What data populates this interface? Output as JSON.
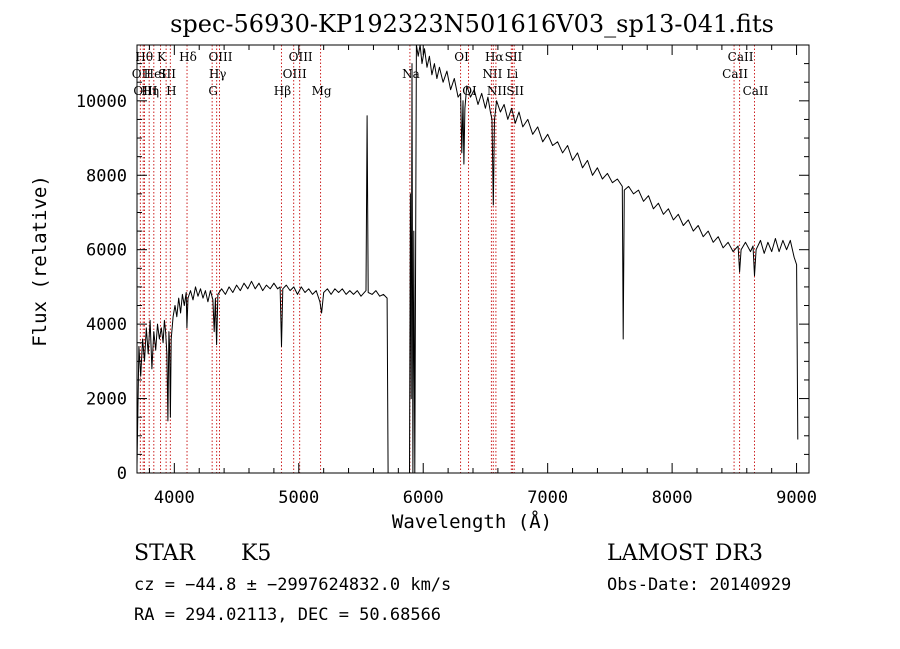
{
  "chart_data": {
    "type": "line",
    "title": "spec-56930-KP192323N501616V03_sp13-041.fits",
    "xlabel": "Wavelength (Å)",
    "ylabel": "Flux (relative)",
    "xlim": [
      3700,
      9100
    ],
    "ylim": [
      0,
      11500
    ],
    "xticks": [
      4000,
      5000,
      6000,
      7000,
      8000,
      9000
    ],
    "xtick_labels": [
      "4000",
      "5000",
      "6000",
      "7000",
      "8000",
      "9000"
    ],
    "yticks": [
      0,
      2000,
      4000,
      6000,
      8000,
      10000
    ],
    "ytick_labels": [
      "0",
      "2000",
      "4000",
      "6000",
      "8000",
      "10000"
    ],
    "grid": false,
    "series": [
      {
        "name": "flux",
        "points": [
          [
            3700,
            200
          ],
          [
            3715,
            3400
          ],
          [
            3730,
            2600
          ],
          [
            3745,
            3600
          ],
          [
            3760,
            3000
          ],
          [
            3775,
            3900
          ],
          [
            3790,
            3200
          ],
          [
            3805,
            4100
          ],
          [
            3820,
            2800
          ],
          [
            3835,
            3800
          ],
          [
            3850,
            3300
          ],
          [
            3865,
            4000
          ],
          [
            3880,
            3600
          ],
          [
            3895,
            3900
          ],
          [
            3910,
            3500
          ],
          [
            3920,
            4100
          ],
          [
            3930,
            3800
          ],
          [
            3940,
            3200
          ],
          [
            3948,
            1400
          ],
          [
            3956,
            3800
          ],
          [
            3962,
            3400
          ],
          [
            3968,
            1500
          ],
          [
            3975,
            3600
          ],
          [
            3990,
            4200
          ],
          [
            4005,
            4500
          ],
          [
            4020,
            4200
          ],
          [
            4035,
            4700
          ],
          [
            4050,
            4300
          ],
          [
            4065,
            4800
          ],
          [
            4080,
            4500
          ],
          [
            4095,
            4850
          ],
          [
            4101,
            3900
          ],
          [
            4110,
            4700
          ],
          [
            4130,
            4900
          ],
          [
            4150,
            4650
          ],
          [
            4170,
            5000
          ],
          [
            4190,
            4750
          ],
          [
            4210,
            4950
          ],
          [
            4230,
            4700
          ],
          [
            4250,
            4900
          ],
          [
            4270,
            4600
          ],
          [
            4290,
            4900
          ],
          [
            4310,
            4650
          ],
          [
            4320,
            3800
          ],
          [
            4330,
            4700
          ],
          [
            4340,
            3450
          ],
          [
            4350,
            4800
          ],
          [
            4380,
            4950
          ],
          [
            4410,
            4800
          ],
          [
            4440,
            5000
          ],
          [
            4470,
            4850
          ],
          [
            4500,
            5050
          ],
          [
            4530,
            4900
          ],
          [
            4560,
            5100
          ],
          [
            4590,
            4950
          ],
          [
            4620,
            5150
          ],
          [
            4650,
            4950
          ],
          [
            4680,
            5100
          ],
          [
            4710,
            4900
          ],
          [
            4740,
            5050
          ],
          [
            4770,
            4950
          ],
          [
            4800,
            5100
          ],
          [
            4830,
            4950
          ],
          [
            4850,
            5000
          ],
          [
            4861,
            3400
          ],
          [
            4872,
            4950
          ],
          [
            4900,
            5050
          ],
          [
            4930,
            4900
          ],
          [
            4960,
            5000
          ],
          [
            4990,
            4800
          ],
          [
            5020,
            5000
          ],
          [
            5050,
            4850
          ],
          [
            5080,
            4950
          ],
          [
            5110,
            4800
          ],
          [
            5140,
            4900
          ],
          [
            5170,
            4600
          ],
          [
            5183,
            4300
          ],
          [
            5200,
            4850
          ],
          [
            5230,
            4950
          ],
          [
            5260,
            4800
          ],
          [
            5290,
            4950
          ],
          [
            5320,
            4850
          ],
          [
            5350,
            4950
          ],
          [
            5380,
            4800
          ],
          [
            5410,
            4900
          ],
          [
            5440,
            4800
          ],
          [
            5470,
            4900
          ],
          [
            5500,
            4750
          ],
          [
            5540,
            4900
          ],
          [
            5549,
            9600
          ],
          [
            5558,
            4850
          ],
          [
            5590,
            4800
          ],
          [
            5620,
            4900
          ],
          [
            5650,
            4750
          ],
          [
            5680,
            4800
          ],
          [
            5710,
            4700
          ],
          [
            5718,
            0
          ],
          [
            5890,
            0
          ],
          [
            5897,
            7500
          ],
          [
            5903,
            2000
          ],
          [
            5910,
            11000
          ],
          [
            5917,
            0
          ],
          [
            5924,
            6500
          ],
          [
            5932,
            0
          ],
          [
            5945,
            11600
          ],
          [
            5960,
            11200
          ],
          [
            5975,
            11500
          ],
          [
            5990,
            11000
          ],
          [
            6010,
            11400
          ],
          [
            6030,
            10900
          ],
          [
            6050,
            11200
          ],
          [
            6070,
            10700
          ],
          [
            6090,
            11000
          ],
          [
            6110,
            10600
          ],
          [
            6130,
            10900
          ],
          [
            6160,
            10500
          ],
          [
            6190,
            10800
          ],
          [
            6220,
            10300
          ],
          [
            6250,
            10600
          ],
          [
            6280,
            10100
          ],
          [
            6300,
            10200
          ],
          [
            6310,
            8600
          ],
          [
            6320,
            10000
          ],
          [
            6327,
            8300
          ],
          [
            6335,
            9800
          ],
          [
            6350,
            10400
          ],
          [
            6380,
            10100
          ],
          [
            6410,
            10300
          ],
          [
            6440,
            9900
          ],
          [
            6470,
            10200
          ],
          [
            6500,
            9800
          ],
          [
            6520,
            10100
          ],
          [
            6540,
            9700
          ],
          [
            6553,
            9500
          ],
          [
            6563,
            7200
          ],
          [
            6573,
            9500
          ],
          [
            6590,
            10000
          ],
          [
            6620,
            9700
          ],
          [
            6650,
            9900
          ],
          [
            6680,
            9500
          ],
          [
            6710,
            9800
          ],
          [
            6740,
            9400
          ],
          [
            6770,
            9700
          ],
          [
            6800,
            9300
          ],
          [
            6840,
            9500
          ],
          [
            6880,
            9100
          ],
          [
            6920,
            9300
          ],
          [
            6960,
            8900
          ],
          [
            7000,
            9100
          ],
          [
            7040,
            8800
          ],
          [
            7080,
            8900
          ],
          [
            7120,
            8600
          ],
          [
            7160,
            8800
          ],
          [
            7200,
            8400
          ],
          [
            7240,
            8600
          ],
          [
            7280,
            8200
          ],
          [
            7320,
            8400
          ],
          [
            7360,
            8000
          ],
          [
            7400,
            8200
          ],
          [
            7440,
            7900
          ],
          [
            7480,
            8050
          ],
          [
            7520,
            7800
          ],
          [
            7560,
            7900
          ],
          [
            7600,
            7700
          ],
          [
            7607,
            3600
          ],
          [
            7616,
            7600
          ],
          [
            7650,
            7700
          ],
          [
            7690,
            7500
          ],
          [
            7730,
            7600
          ],
          [
            7770,
            7300
          ],
          [
            7810,
            7450
          ],
          [
            7850,
            7100
          ],
          [
            7890,
            7250
          ],
          [
            7930,
            6950
          ],
          [
            7970,
            7100
          ],
          [
            8010,
            6800
          ],
          [
            8050,
            6950
          ],
          [
            8090,
            6650
          ],
          [
            8130,
            6800
          ],
          [
            8170,
            6500
          ],
          [
            8210,
            6650
          ],
          [
            8250,
            6350
          ],
          [
            8290,
            6500
          ],
          [
            8330,
            6200
          ],
          [
            8370,
            6350
          ],
          [
            8410,
            6050
          ],
          [
            8450,
            6200
          ],
          [
            8490,
            5950
          ],
          [
            8530,
            6100
          ],
          [
            8542,
            5400
          ],
          [
            8554,
            6000
          ],
          [
            8590,
            6200
          ],
          [
            8630,
            5950
          ],
          [
            8650,
            6100
          ],
          [
            8662,
            5300
          ],
          [
            8675,
            6000
          ],
          [
            8710,
            6250
          ],
          [
            8740,
            5900
          ],
          [
            8770,
            6200
          ],
          [
            8800,
            5950
          ],
          [
            8830,
            6300
          ],
          [
            8860,
            5950
          ],
          [
            8890,
            6250
          ],
          [
            8920,
            6000
          ],
          [
            8950,
            6250
          ],
          [
            8980,
            5800
          ],
          [
            9000,
            5600
          ],
          [
            9010,
            900
          ]
        ]
      }
    ],
    "line_markers": [
      {
        "wl": 3727,
        "label": "OII",
        "row": 1
      },
      {
        "wl": 3750,
        "label": "Hθ",
        "row": 0
      },
      {
        "wl": 3760,
        "label": "OIII",
        "row": 2
      },
      {
        "wl": 3798,
        "label": "Hη",
        "row": 2
      },
      {
        "wl": 3835,
        "label": "HeI",
        "row": 1
      },
      {
        "wl": 3889,
        "label": "K",
        "row": 0
      },
      {
        "wl": 3934,
        "label": "SII",
        "row": 1
      },
      {
        "wl": 3968,
        "label": "H",
        "row": 2
      },
      {
        "wl": 4102,
        "label": "Hδ",
        "row": 0
      },
      {
        "wl": 4304,
        "label": "G",
        "row": 2
      },
      {
        "wl": 4340,
        "label": "Hγ",
        "row": 1
      },
      {
        "wl": 4363,
        "label": "OIII",
        "row": 0
      },
      {
        "wl": 4861,
        "label": "Hβ",
        "row": 2
      },
      {
        "wl": 4959,
        "label": "OIII",
        "row": 1
      },
      {
        "wl": 5007,
        "label": "OIII",
        "row": 0
      },
      {
        "wl": 5175,
        "label": "Mg",
        "row": 2
      },
      {
        "wl": 5893,
        "label": "Na",
        "row": 1
      },
      {
        "wl": 6300,
        "label": "OI",
        "row": 0
      },
      {
        "wl": 6364,
        "label": "OI",
        "row": 2
      },
      {
        "wl": 6548,
        "label": "NII",
        "row": 1
      },
      {
        "wl": 6563,
        "label": "Hα",
        "row": 0
      },
      {
        "wl": 6584,
        "label": "NII",
        "row": 2
      },
      {
        "wl": 6708,
        "label": "Li",
        "row": 1
      },
      {
        "wl": 6717,
        "label": "SII",
        "row": 0
      },
      {
        "wl": 6731,
        "label": "SII",
        "row": 2
      },
      {
        "wl": 8498,
        "label": "CaII",
        "row": 1
      },
      {
        "wl": 8542,
        "label": "CaII",
        "row": 0
      },
      {
        "wl": 8662,
        "label": "CaII",
        "row": 2
      }
    ]
  },
  "info": {
    "class": "STAR",
    "subclass": "K5",
    "survey": "LAMOST DR3",
    "cz": "cz = −44.8 ± −2997624832.0 km/s",
    "obs_date": "Obs-Date: 20140929",
    "radec": "RA = 294.02113, DEC =  50.68566"
  }
}
